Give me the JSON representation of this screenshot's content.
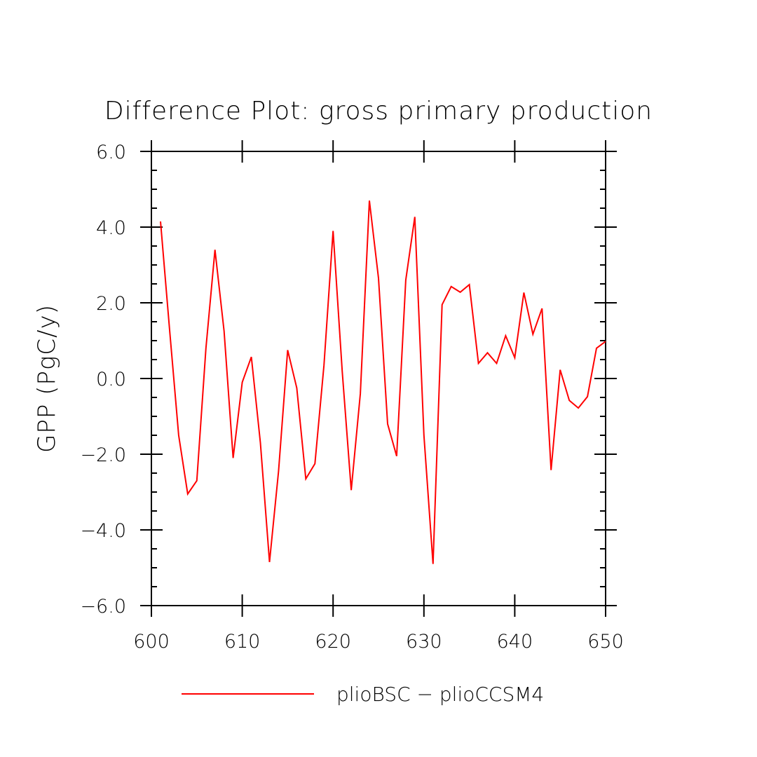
{
  "chart_data": {
    "type": "line",
    "title": "Difference Plot: gross primary production",
    "xlabel": "",
    "ylabel": "GPP  (PgC/y)",
    "xlim": [
      600,
      650
    ],
    "ylim": [
      -6.0,
      6.0
    ],
    "x_ticks": [
      600,
      610,
      620,
      630,
      640,
      650
    ],
    "x_tick_labels": [
      "600",
      "610",
      "620",
      "630",
      "640",
      "650"
    ],
    "y_ticks": [
      -6.0,
      -4.0,
      -2.0,
      0.0,
      2.0,
      4.0,
      6.0
    ],
    "y_tick_labels": [
      "−6.0",
      "−4.0",
      "−2.0",
      "0.0",
      "2.0",
      "4.0",
      "6.0"
    ],
    "grid": false,
    "legend_position": "bottom",
    "series": [
      {
        "name": "plioBSC − plioCCSM4",
        "color": "#ff0000",
        "x": [
          601,
          602,
          603,
          604,
          605,
          606,
          607,
          608,
          609,
          610,
          611,
          612,
          613,
          614,
          615,
          616,
          617,
          618,
          619,
          620,
          621,
          622,
          623,
          624,
          625,
          626,
          627,
          628,
          629,
          630,
          631,
          632,
          633,
          634,
          635,
          636,
          637,
          638,
          639,
          640,
          641,
          642,
          643,
          644,
          645,
          646,
          647,
          648,
          649,
          650
        ],
        "values": [
          4.15,
          1.3,
          -1.5,
          -3.05,
          -2.7,
          0.8,
          3.4,
          1.25,
          -2.1,
          -0.1,
          0.57,
          -1.7,
          -4.85,
          -2.45,
          0.75,
          -0.25,
          -2.65,
          -2.25,
          0.35,
          3.9,
          0.2,
          -2.95,
          -0.4,
          4.7,
          2.65,
          -1.2,
          -2.05,
          2.6,
          4.27,
          -1.5,
          -4.9,
          1.95,
          2.43,
          2.28,
          2.48,
          0.4,
          0.68,
          0.4,
          1.13,
          0.55,
          2.27,
          1.17,
          1.85,
          -2.42,
          0.23,
          -0.58,
          -0.78,
          -0.48,
          0.8,
          0.98
        ]
      }
    ]
  }
}
